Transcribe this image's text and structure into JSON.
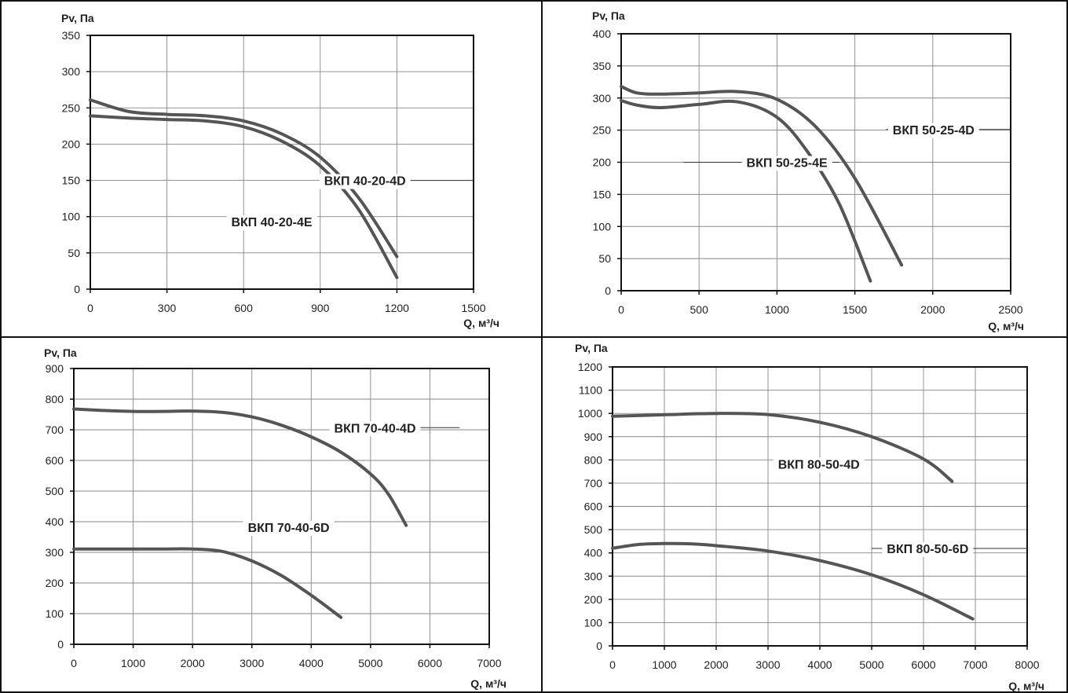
{
  "chart_data": [
    {
      "type": "line",
      "ylabel": "Pv, Па",
      "xlabel": "Q, м³/ч",
      "xlim": [
        0,
        1500
      ],
      "ylim": [
        0,
        350
      ],
      "x_ticks": [
        0,
        300,
        600,
        900,
        1200,
        1500
      ],
      "y_ticks": [
        0,
        50,
        100,
        150,
        200,
        250,
        300,
        350
      ],
      "grid": true,
      "series": [
        {
          "name": "ВКП 40-20-4D",
          "x": [
            0,
            150,
            300,
            450,
            600,
            750,
            900,
            1050,
            1200
          ],
          "y": [
            261,
            245,
            241,
            239,
            232,
            214,
            182,
            126,
            45
          ]
        },
        {
          "name": "ВКП 40-20-4E",
          "x": [
            0,
            150,
            300,
            450,
            600,
            750,
            900,
            1050,
            1200
          ],
          "y": [
            239,
            236,
            234,
            232,
            224,
            204,
            170,
            110,
            16
          ]
        }
      ],
      "annotations": [
        {
          "text": "ВКП 40-20-4D",
          "series": 0,
          "x": 1075,
          "y": 150,
          "leader_x": [
            900,
            1500
          ]
        },
        {
          "text": "ВКП 40-20-4E",
          "series": 1,
          "x": 710,
          "y": 93,
          "leader_x": []
        }
      ]
    },
    {
      "type": "line",
      "ylabel": "Pv, Па",
      "xlabel": "Q, м³/ч",
      "xlim": [
        0,
        2500
      ],
      "ylim": [
        0,
        400
      ],
      "x_ticks": [
        0,
        500,
        1000,
        1500,
        2000,
        2500
      ],
      "y_ticks": [
        0,
        50,
        100,
        150,
        200,
        250,
        300,
        350,
        400
      ],
      "grid": true,
      "series": [
        {
          "name": "ВКП 50-25-4D",
          "x": [
            0,
            100,
            250,
            500,
            750,
            1000,
            1250,
            1500,
            1800
          ],
          "y": [
            318,
            308,
            306,
            308,
            310,
            298,
            255,
            175,
            40
          ]
        },
        {
          "name": "ВКП 50-25-4E",
          "x": [
            0,
            100,
            250,
            500,
            750,
            1000,
            1200,
            1400,
            1600
          ],
          "y": [
            296,
            289,
            285,
            290,
            294,
            270,
            215,
            135,
            15
          ]
        }
      ],
      "annotations": [
        {
          "text": "ВКП 50-25-4D",
          "series": 0,
          "x": 2005,
          "y": 251,
          "leader_x": [
            1700,
            2500
          ]
        },
        {
          "text": "ВКП 50-25-4E",
          "series": 1,
          "x": 1064,
          "y": 200,
          "leader_x": [
            400,
            1400
          ]
        }
      ]
    },
    {
      "type": "line",
      "ylabel": "Pv, Па",
      "xlabel": "Q, м³/ч",
      "xlim": [
        0,
        7000
      ],
      "ylim": [
        0,
        900
      ],
      "x_ticks": [
        0,
        1000,
        2000,
        3000,
        4000,
        5000,
        6000,
        7000
      ],
      "y_ticks": [
        0,
        100,
        200,
        300,
        400,
        500,
        600,
        700,
        800,
        900
      ],
      "grid": true,
      "series": [
        {
          "name": "ВКП 70-40-4D",
          "x": [
            0,
            500,
            1000,
            1500,
            2000,
            2500,
            3000,
            3500,
            4000,
            4500,
            5000,
            5300,
            5600
          ],
          "y": [
            768,
            763,
            760,
            760,
            761,
            757,
            742,
            715,
            677,
            627,
            556,
            490,
            388
          ]
        },
        {
          "name": "ВКП 70-40-6D",
          "x": [
            0,
            500,
            1000,
            1500,
            2000,
            2500,
            3000,
            3500,
            4000,
            4500
          ],
          "y": [
            311,
            311,
            311,
            311,
            311,
            303,
            272,
            224,
            160,
            88
          ]
        }
      ],
      "annotations": [
        {
          "text": "ВКП 70-40-4D",
          "series": 0,
          "x": 5075,
          "y": 707,
          "leader_x": [
            4500,
            6500
          ]
        },
        {
          "text": "ВКП 70-40-6D",
          "series": 1,
          "x": 3620,
          "y": 382,
          "leader_x": []
        }
      ]
    },
    {
      "type": "line",
      "ylabel": "Pv, Па",
      "xlabel": "Q, м³/ч",
      "xlim": [
        0,
        8000
      ],
      "ylim": [
        0,
        1200
      ],
      "x_ticks": [
        0,
        1000,
        2000,
        3000,
        4000,
        5000,
        6000,
        7000,
        8000
      ],
      "y_ticks": [
        0,
        100,
        200,
        300,
        400,
        500,
        600,
        700,
        800,
        900,
        1000,
        1100,
        1200
      ],
      "grid": true,
      "series": [
        {
          "name": "ВКП 80-50-4D",
          "x": [
            0,
            1000,
            2000,
            3000,
            4000,
            5000,
            6000,
            6550
          ],
          "y": [
            988,
            994,
            1000,
            995,
            962,
            900,
            804,
            708
          ]
        },
        {
          "name": "ВКП 80-50-6D",
          "x": [
            0,
            500,
            1000,
            1500,
            2000,
            3000,
            4000,
            5000,
            6000,
            6950
          ],
          "y": [
            420,
            436,
            440,
            439,
            431,
            408,
            367,
            306,
            220,
            116
          ]
        }
      ],
      "annotations": [
        {
          "text": "ВКП 80-50-4D",
          "series": 0,
          "x": 3980,
          "y": 782,
          "leader_x": []
        },
        {
          "text": "ВКП 80-50-6D",
          "series": 1,
          "x": 6080,
          "y": 419,
          "leader_x": [
            5000,
            8000
          ]
        }
      ]
    }
  ]
}
